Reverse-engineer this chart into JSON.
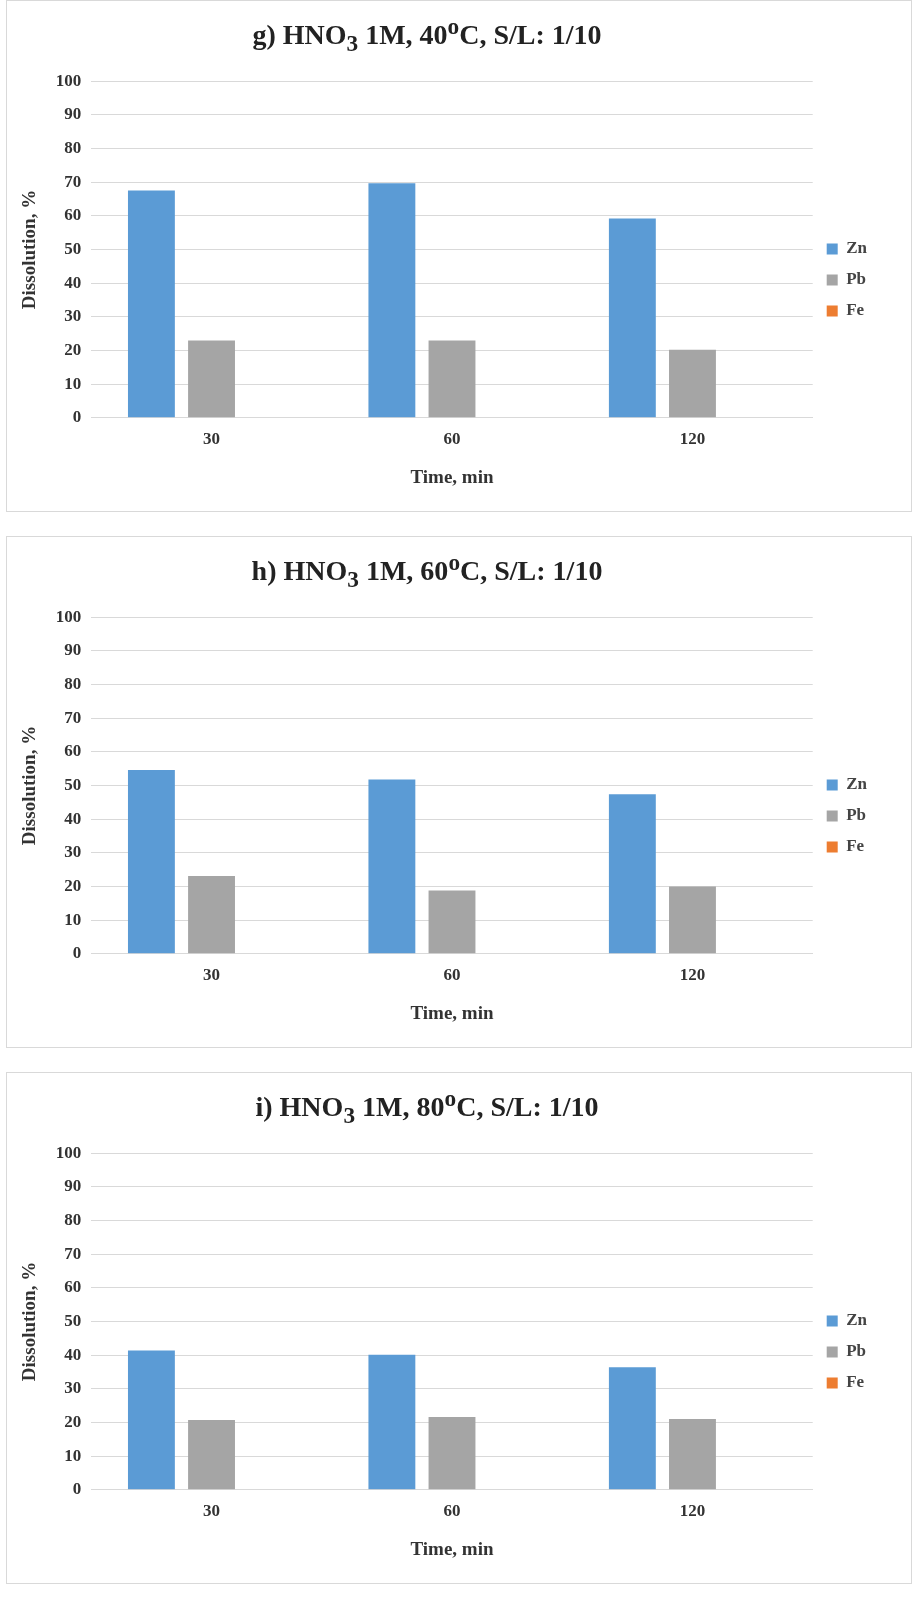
{
  "chart_data": [
    {
      "type": "bar",
      "title": "g) HNO$_{3}$ 1M, 40$^{o}$C, S/L: 1/10",
      "xlabel": "Time, min",
      "ylabel": "Dissolution, %",
      "categories": [
        "30",
        "60",
        "120"
      ],
      "series": [
        {
          "name": "Zn",
          "color": "#5b9bd5",
          "values": [
            67.5,
            69.7,
            59.2
          ]
        },
        {
          "name": "Pb",
          "color": "#a5a5a5",
          "values": [
            23,
            23,
            20.2
          ]
        },
        {
          "name": "Fe",
          "color": "#ed7d31",
          "values": [
            0,
            0,
            0
          ]
        }
      ],
      "ylim": [
        0,
        100
      ],
      "yticks": [
        0,
        10,
        20,
        30,
        40,
        50,
        60,
        70,
        80,
        90,
        100
      ],
      "grid": "y",
      "legend": "right"
    },
    {
      "type": "bar",
      "title": "h) HNO$_{3}$ 1M, 60$^{o}$C, S/L: 1/10",
      "xlabel": "Time, min",
      "ylabel": "Dissolution, %",
      "categories": [
        "30",
        "60",
        "120"
      ],
      "series": [
        {
          "name": "Zn",
          "color": "#5b9bd5",
          "values": [
            54.6,
            51.8,
            47.4
          ]
        },
        {
          "name": "Pb",
          "color": "#a5a5a5",
          "values": [
            23.1,
            18.8,
            20
          ]
        },
        {
          "name": "Fe",
          "color": "#ed7d31",
          "values": [
            0,
            0,
            0
          ]
        }
      ],
      "ylim": [
        0,
        100
      ],
      "yticks": [
        0,
        10,
        20,
        30,
        40,
        50,
        60,
        70,
        80,
        90,
        100
      ],
      "grid": "y",
      "legend": "right"
    },
    {
      "type": "bar",
      "title": "i) HNO$_{3}$ 1M, 80$^{o}$C, S/L: 1/10",
      "xlabel": "Time, min",
      "ylabel": "Dissolution, %",
      "categories": [
        "30",
        "60",
        "120"
      ],
      "series": [
        {
          "name": "Zn",
          "color": "#5b9bd5",
          "values": [
            41.4,
            40.1,
            36.4
          ]
        },
        {
          "name": "Pb",
          "color": "#a5a5a5",
          "values": [
            20.7,
            21.6,
            21
          ]
        },
        {
          "name": "Fe",
          "color": "#ed7d31",
          "values": [
            0,
            0,
            0
          ]
        }
      ],
      "ylim": [
        0,
        100
      ],
      "yticks": [
        0,
        10,
        20,
        30,
        40,
        50,
        60,
        70,
        80,
        90,
        100
      ],
      "grid": "y",
      "legend": "right"
    }
  ]
}
